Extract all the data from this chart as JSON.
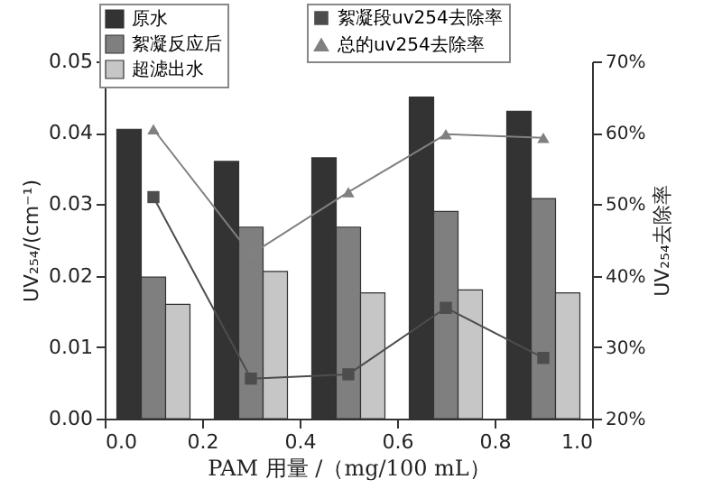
{
  "chart_data": {
    "type": "bar",
    "xlabel": "PAM 用量 /（mg/100 mL）",
    "ylabel": "UV₂₅₄/(cm⁻¹)",
    "y2label": "UV₂₅₄去除率",
    "series": [
      {
        "name": "原水",
        "color": "#333333",
        "x": [
          0.05,
          0.25,
          0.45,
          0.65,
          0.85
        ],
        "values": [
          0.0405,
          0.036,
          0.0365,
          0.045,
          0.043
        ]
      },
      {
        "name": "絮凝反应后",
        "color": "#7f7f7f",
        "x": [
          0.1,
          0.3,
          0.5,
          0.7,
          0.9
        ],
        "values": [
          0.0198,
          0.0268,
          0.0268,
          0.029,
          0.0308
        ]
      },
      {
        "name": "超滤出水",
        "color": "#c6c6c6",
        "x": [
          0.15,
          0.35,
          0.55,
          0.75,
          0.95
        ],
        "values": [
          0.016,
          0.0206,
          0.0176,
          0.018,
          0.0176
        ]
      },
      {
        "name": "絮凝段uv254去除率",
        "type": "line",
        "axis": "y2",
        "marker": "square",
        "color": "#4d4d4d",
        "x": [
          0.1,
          0.3,
          0.5,
          0.7,
          0.9
        ],
        "values": [
          51,
          25.6,
          26.2,
          35.5,
          28.5
        ]
      },
      {
        "name": "总的uv254去除率",
        "type": "line",
        "axis": "y2",
        "marker": "triangle",
        "color": "#808080",
        "x": [
          0.1,
          0.3,
          0.5,
          0.7,
          0.9
        ],
        "values": [
          60.5,
          43,
          51.7,
          59.8,
          59.3
        ]
      }
    ],
    "xlim": [
      0,
      1
    ],
    "xticks": [
      {
        "value": 0,
        "label": "0.0"
      },
      {
        "value": 0.2,
        "label": "0.2"
      },
      {
        "value": 0.4,
        "label": "0.4"
      },
      {
        "value": 0.6,
        "label": "0.6"
      },
      {
        "value": 0.8,
        "label": "0.8"
      },
      {
        "value": 1,
        "label": "1.0"
      }
    ],
    "ylim": [
      0,
      0.05
    ],
    "yticks": [
      {
        "value": 0,
        "label": "0.00"
      },
      {
        "value": 0.01,
        "label": "0.01"
      },
      {
        "value": 0.02,
        "label": "0.02"
      },
      {
        "value": 0.03,
        "label": "0.03"
      },
      {
        "value": 0.04,
        "label": "0.04"
      },
      {
        "value": 0.05,
        "label": "0.05"
      }
    ],
    "y2lim": [
      20,
      70
    ],
    "y2ticks": [
      {
        "value": 20,
        "label": "20%"
      },
      {
        "value": 30,
        "label": "30%"
      },
      {
        "value": 40,
        "label": "40%"
      },
      {
        "value": 50,
        "label": "50%"
      },
      {
        "value": 60,
        "label": "60%"
      },
      {
        "value": 70,
        "label": "70%"
      }
    ],
    "grid": false,
    "legend": "top"
  }
}
